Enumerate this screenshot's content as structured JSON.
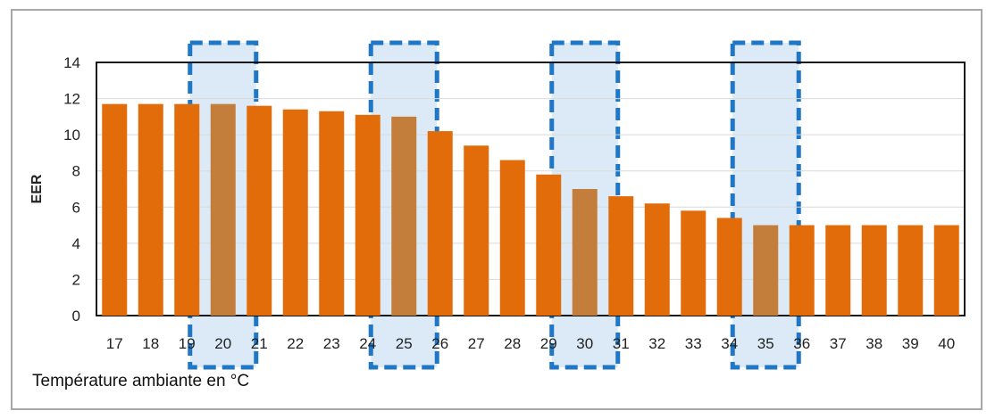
{
  "caption": "Température ambiante en °C",
  "chart_data": {
    "type": "bar",
    "categories": [
      "17",
      "18",
      "19",
      "20",
      "21",
      "22",
      "23",
      "24",
      "25",
      "26",
      "27",
      "28",
      "29",
      "30",
      "31",
      "32",
      "33",
      "34",
      "35",
      "36",
      "37",
      "38",
      "39",
      "40"
    ],
    "values": [
      11.7,
      11.7,
      11.7,
      11.7,
      11.6,
      11.4,
      11.3,
      11.1,
      11.0,
      10.2,
      9.4,
      8.6,
      7.8,
      7.0,
      6.6,
      6.2,
      5.8,
      5.4,
      5.0,
      5.0,
      5.0,
      5.0,
      5.0,
      5.0
    ],
    "ylabel": "EER",
    "xlabel": "",
    "ylim": [
      0,
      14
    ],
    "yticks": [
      0,
      2,
      4,
      6,
      8,
      10,
      12,
      14
    ],
    "grid": true,
    "highlighted_categories": [
      "20",
      "25",
      "30",
      "35"
    ],
    "colors": {
      "bar": "#e36c0a",
      "bar_highlight": "#c47e3c",
      "highlight_fill": "#dbeaf6",
      "highlight_border": "#1f77c6",
      "grid": "#d9d9d9",
      "axis": "#000000"
    }
  }
}
